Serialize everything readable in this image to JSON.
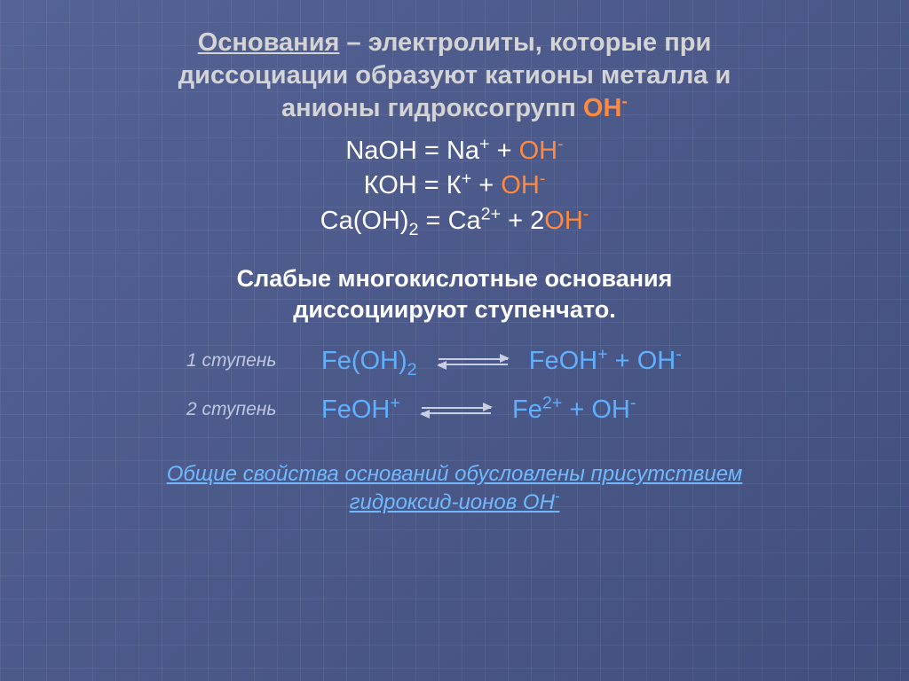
{
  "colors": {
    "background": "#4b5a8f",
    "heading": "#d4d4d4",
    "body_white": "#fefefe",
    "oh_highlight": "#ff8a3d",
    "blue_text": "#5fb0ff",
    "step_label": "#bfc6e0",
    "arrow": "#c9cee4",
    "footer": "#6fbaff"
  },
  "fontsizes": {
    "heading": 29,
    "eq": 29,
    "subhead": 27,
    "step_label": 21,
    "step_eq": 29,
    "footer": 24
  },
  "heading": {
    "underlined_word": "Основания",
    "line1_rest": " – электролиты, которые при",
    "line2": "диссоциации образуют катионы металла и",
    "line3_prefix": "анионы гидроксогрупп ",
    "line3_oh": "ОН",
    "line3_oh_sup": "-"
  },
  "equations": {
    "eq1": {
      "lhs": "NaOH",
      "eq": " = ",
      "rhs_a": "Na",
      "rhs_a_sup": "+",
      "plus": " + ",
      "rhs_b": "OH",
      "rhs_b_sup": "-"
    },
    "eq2": {
      "lhs": "КОН",
      "eq": " = ",
      "rhs_a": "К",
      "rhs_a_sup": "+",
      "plus": " + ",
      "rhs_b": "ОН",
      "rhs_b_sup": "-"
    },
    "eq3": {
      "lhs_a": "Ca(OH)",
      "lhs_sub": "2",
      "eq": " = ",
      "rhs_a": "Ca",
      "rhs_a_sup": "2+",
      "plus": " + 2",
      "rhs_b": "OH",
      "rhs_b_sup": "-"
    }
  },
  "subheading": {
    "line1": "Слабые многокислотные основания",
    "line2": "диссоциируют ступенчато."
  },
  "steps": {
    "step1": {
      "label": "1 ступень",
      "lhs_a": "Fe(OH)",
      "lhs_sub": "2",
      "rhs_a": "FeOH",
      "rhs_a_sup": "+",
      "plus": " + ",
      "rhs_b": "OH",
      "rhs_b_sup": "-"
    },
    "step2": {
      "label": "2 ступень",
      "lhs_a": "FeOH",
      "lhs_a_sup": "+",
      "rhs_a": "Fe",
      "rhs_a_sup": "2+",
      "plus": " + ",
      "rhs_b": "OH",
      "rhs_b_sup": "-"
    }
  },
  "footer": {
    "line1": "Общие свойства оснований обусловлены присутствием",
    "line2_prefix": "гидроксид-ионов  ",
    "line2_oh": "ОН",
    "line2_oh_sup": "-"
  }
}
